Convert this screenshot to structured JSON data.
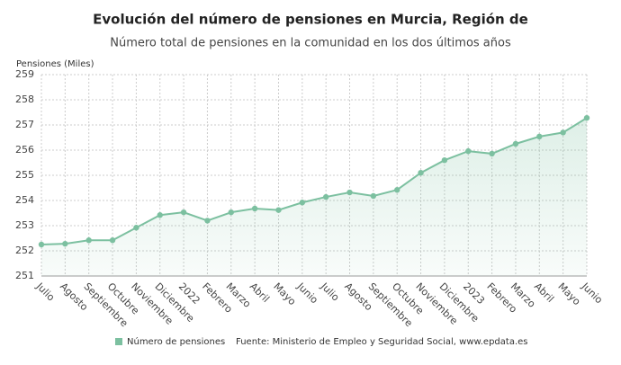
{
  "chart_data": {
    "type": "line",
    "title": "Evolución del número de pensiones en Murcia, Región de",
    "subtitle": "Número total de pensiones en la comunidad en los dos últimos años",
    "y_label": "Pensiones (Miles)",
    "source": "Fuente: Ministerio de Empleo y Seguridad Social, www.epdata.es",
    "categories": [
      "Julio",
      "Agosto",
      "Septiembre",
      "Octubre",
      "Noviembre",
      "Diciembre",
      "2022",
      "Febrero",
      "Marzo",
      "Abril",
      "Mayo",
      "Junio",
      "Julio",
      "Agosto",
      "Septiembre",
      "Octubre",
      "Noviembre",
      "Diciembre",
      "2023",
      "Febrero",
      "Marzo",
      "Abril",
      "Mayo",
      "Junio"
    ],
    "series": [
      {
        "name": "Número de pensiones",
        "color": "#7cc0a0",
        "values": [
          252.25,
          252.28,
          252.42,
          252.42,
          252.92,
          253.42,
          253.53,
          253.2,
          253.53,
          253.68,
          253.62,
          253.92,
          254.14,
          254.32,
          254.18,
          254.42,
          255.1,
          255.6,
          255.96,
          255.86,
          256.25,
          256.54,
          256.7,
          257.28
        ]
      }
    ],
    "ylim": [
      251,
      259
    ],
    "yticks": [
      251,
      252,
      253,
      254,
      255,
      256,
      257,
      258,
      259
    ],
    "grid": true
  }
}
